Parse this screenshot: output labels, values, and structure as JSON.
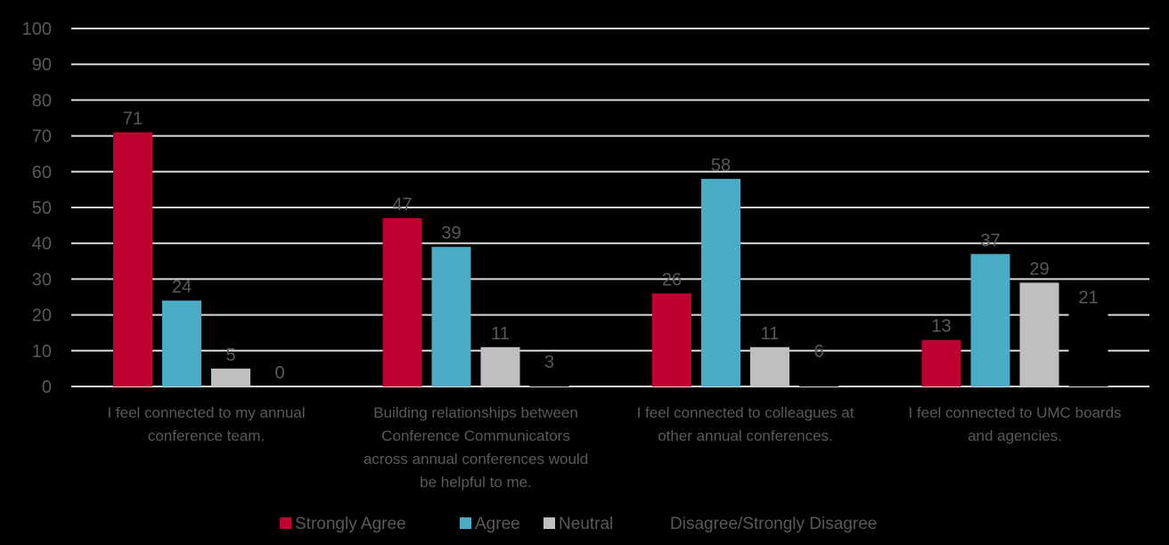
{
  "chart_data": {
    "type": "bar",
    "title": "",
    "xlabel": "",
    "ylabel": "",
    "ylim": [
      0,
      100
    ],
    "yticks": [
      0,
      10,
      20,
      30,
      40,
      50,
      60,
      70,
      80,
      90,
      100
    ],
    "grid": true,
    "legend_position": "bottom",
    "categories": [
      [
        "I feel connected to my annual",
        "conference team."
      ],
      [
        "Building relationships between",
        "Conference Communicators",
        "across annual conferences would",
        "be helpful to me."
      ],
      [
        "I feel connected to colleagues at",
        "other annual conferences."
      ],
      [
        "I feel connected to UMC boards",
        "and agencies."
      ]
    ],
    "series": [
      {
        "name": "Strongly Agree",
        "color": "#c00030",
        "values": [
          71,
          47,
          26,
          13
        ]
      },
      {
        "name": "Agree",
        "color": "#4bacc6",
        "values": [
          24,
          39,
          58,
          37
        ]
      },
      {
        "name": "Neutral",
        "color": "#bfbfbf",
        "values": [
          5,
          11,
          11,
          29
        ]
      },
      {
        "name": "Disagree/Strongly Disagree",
        "color": "#000000",
        "values": [
          0,
          3,
          6,
          21
        ]
      }
    ]
  }
}
